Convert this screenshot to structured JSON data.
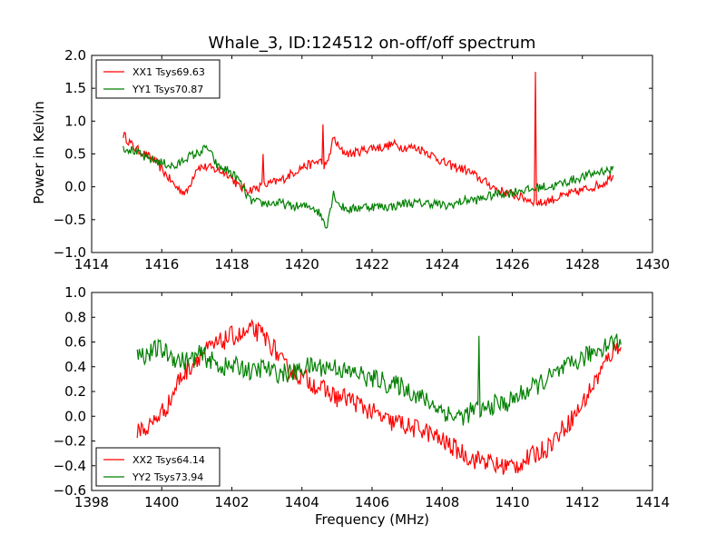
{
  "chart_data": [
    {
      "type": "line",
      "title": "Whale_3, ID:124512 on-off/off spectrum",
      "xlabel": "",
      "ylabel": "Power in Kelvin",
      "xlim": [
        1414,
        1430
      ],
      "ylim": [
        -1.0,
        2.0
      ],
      "xticks": [
        1414,
        1416,
        1418,
        1420,
        1422,
        1424,
        1426,
        1428,
        1430
      ],
      "yticks": [
        -1.0,
        -0.5,
        0.0,
        0.5,
        1.0,
        1.5,
        2.0
      ],
      "xtick_labels": [
        "1414",
        "1416",
        "1418",
        "1420",
        "1422",
        "1424",
        "1426",
        "1428",
        "1430"
      ],
      "ytick_labels": [
        "−1.0",
        "−0.5",
        "0.0",
        "0.5",
        "1.0",
        "1.5",
        "2.0"
      ],
      "grid": false,
      "legend_position": "top-left",
      "series": [
        {
          "name": "XX1 Tsys69.63",
          "color": "#ff0000",
          "x": [
            1414.9,
            1415.2,
            1415.5,
            1415.8,
            1416.1,
            1416.4,
            1416.7,
            1417.0,
            1417.3,
            1417.6,
            1417.9,
            1418.2,
            1418.5,
            1418.8,
            1419.1,
            1419.4,
            1419.7,
            1420.0,
            1420.3,
            1420.5,
            1420.7,
            1420.9,
            1421.1,
            1421.4,
            1421.7,
            1422.0,
            1422.3,
            1422.6,
            1422.9,
            1423.2,
            1423.5,
            1423.8,
            1424.1,
            1424.4,
            1424.7,
            1425.0,
            1425.3,
            1425.6,
            1425.9,
            1426.2,
            1426.5,
            1426.8,
            1427.1,
            1427.4,
            1427.7,
            1428.0,
            1428.3,
            1428.6,
            1428.9
          ],
          "y": [
            0.8,
            0.6,
            0.5,
            0.4,
            0.2,
            0.0,
            -0.1,
            0.3,
            0.3,
            0.25,
            0.2,
            0.0,
            -0.05,
            0.0,
            0.05,
            0.1,
            0.2,
            0.3,
            0.35,
            0.4,
            0.3,
            0.75,
            0.55,
            0.5,
            0.55,
            0.6,
            0.6,
            0.65,
            0.6,
            0.6,
            0.55,
            0.45,
            0.35,
            0.3,
            0.25,
            0.15,
            0.05,
            -0.05,
            -0.1,
            -0.15,
            -0.2,
            -0.25,
            -0.2,
            -0.15,
            -0.1,
            -0.05,
            0.0,
            0.05,
            0.2
          ]
        },
        {
          "name": "YY1 Tsys70.87",
          "color": "#008000",
          "x": [
            1414.9,
            1415.2,
            1415.5,
            1415.8,
            1416.1,
            1416.4,
            1416.7,
            1417.0,
            1417.3,
            1417.6,
            1417.9,
            1418.2,
            1418.5,
            1418.8,
            1419.1,
            1419.4,
            1419.7,
            1420.0,
            1420.3,
            1420.5,
            1420.7,
            1420.9,
            1421.1,
            1421.4,
            1421.7,
            1422.0,
            1422.3,
            1422.6,
            1422.9,
            1423.2,
            1423.5,
            1423.8,
            1424.1,
            1424.4,
            1424.7,
            1425.0,
            1425.3,
            1425.6,
            1425.9,
            1426.2,
            1426.5,
            1426.8,
            1427.1,
            1427.4,
            1427.7,
            1428.0,
            1428.3,
            1428.6,
            1428.9
          ],
          "y": [
            0.6,
            0.55,
            0.45,
            0.4,
            0.35,
            0.3,
            0.45,
            0.5,
            0.6,
            0.3,
            0.25,
            0.1,
            -0.2,
            -0.25,
            -0.25,
            -0.25,
            -0.3,
            -0.3,
            -0.3,
            -0.4,
            -0.6,
            -0.1,
            -0.3,
            -0.35,
            -0.3,
            -0.3,
            -0.3,
            -0.3,
            -0.25,
            -0.25,
            -0.25,
            -0.25,
            -0.3,
            -0.25,
            -0.2,
            -0.2,
            -0.15,
            -0.1,
            -0.1,
            -0.05,
            -0.05,
            0.0,
            0.0,
            0.05,
            0.1,
            0.15,
            0.2,
            0.25,
            0.25
          ]
        }
      ],
      "annotations": [
        {
          "series": 0,
          "x": 1426.65,
          "y": 1.75,
          "kind": "spike"
        },
        {
          "series": 0,
          "x": 1418.9,
          "y": 0.5,
          "kind": "spike"
        },
        {
          "series": 0,
          "x": 1420.6,
          "y": 0.95,
          "kind": "spike"
        }
      ]
    },
    {
      "type": "line",
      "title": "",
      "xlabel": "Frequency (MHz)",
      "ylabel": "",
      "xlim": [
        1398,
        1414
      ],
      "ylim": [
        -0.6,
        1.0
      ],
      "xticks": [
        1398,
        1400,
        1402,
        1404,
        1406,
        1408,
        1410,
        1412,
        1414
      ],
      "yticks": [
        -0.6,
        -0.4,
        -0.2,
        0.0,
        0.2,
        0.4,
        0.6,
        0.8,
        1.0
      ],
      "xtick_labels": [
        "1398",
        "1400",
        "1402",
        "1404",
        "1406",
        "1408",
        "1410",
        "1412",
        "1414"
      ],
      "ytick_labels": [
        "−0.6",
        "−0.4",
        "−0.2",
        "0.0",
        "0.2",
        "0.4",
        "0.6",
        "0.8",
        "1.0"
      ],
      "grid": false,
      "legend_position": "bottom-left",
      "series": [
        {
          "name": "XX2 Tsys64.14",
          "color": "#ff0000",
          "x": [
            1399.3,
            1399.6,
            1399.9,
            1400.2,
            1400.5,
            1400.8,
            1401.1,
            1401.4,
            1401.7,
            1402.0,
            1402.3,
            1402.6,
            1402.9,
            1403.2,
            1403.5,
            1403.8,
            1404.1,
            1404.4,
            1404.7,
            1405.0,
            1405.3,
            1405.6,
            1405.9,
            1406.2,
            1406.5,
            1406.8,
            1407.1,
            1407.4,
            1407.7,
            1408.0,
            1408.3,
            1408.6,
            1408.9,
            1409.2,
            1409.5,
            1409.8,
            1410.1,
            1410.4,
            1410.7,
            1411.0,
            1411.3,
            1411.6,
            1411.9,
            1412.2,
            1412.5,
            1412.8,
            1413.1
          ],
          "y": [
            -0.1,
            -0.1,
            0.0,
            0.1,
            0.3,
            0.4,
            0.5,
            0.55,
            0.6,
            0.65,
            0.65,
            0.7,
            0.65,
            0.55,
            0.4,
            0.35,
            0.3,
            0.25,
            0.2,
            0.15,
            0.15,
            0.1,
            0.05,
            0.0,
            -0.05,
            -0.05,
            -0.1,
            -0.1,
            -0.15,
            -0.2,
            -0.25,
            -0.3,
            -0.35,
            -0.35,
            -0.4,
            -0.4,
            -0.4,
            -0.35,
            -0.3,
            -0.25,
            -0.15,
            -0.05,
            0.05,
            0.2,
            0.35,
            0.5,
            0.6
          ]
        },
        {
          "name": "YY2 Tsys73.94",
          "color": "#008000",
          "x": [
            1399.3,
            1399.6,
            1399.9,
            1400.2,
            1400.5,
            1400.8,
            1401.1,
            1401.4,
            1401.7,
            1402.0,
            1402.3,
            1402.6,
            1402.9,
            1403.2,
            1403.5,
            1403.8,
            1404.1,
            1404.4,
            1404.7,
            1405.0,
            1405.3,
            1405.6,
            1405.9,
            1406.2,
            1406.5,
            1406.8,
            1407.1,
            1407.4,
            1407.7,
            1408.0,
            1408.3,
            1408.6,
            1408.9,
            1409.2,
            1409.5,
            1409.8,
            1410.1,
            1410.4,
            1410.7,
            1411.0,
            1411.3,
            1411.6,
            1411.9,
            1412.2,
            1412.5,
            1412.8,
            1413.1
          ],
          "y": [
            0.5,
            0.5,
            0.55,
            0.5,
            0.45,
            0.45,
            0.5,
            0.45,
            0.4,
            0.4,
            0.4,
            0.35,
            0.4,
            0.35,
            0.35,
            0.35,
            0.4,
            0.4,
            0.4,
            0.4,
            0.35,
            0.35,
            0.3,
            0.3,
            0.25,
            0.25,
            0.2,
            0.15,
            0.1,
            0.05,
            0.0,
            0.0,
            0.05,
            0.05,
            0.1,
            0.1,
            0.15,
            0.2,
            0.25,
            0.3,
            0.35,
            0.4,
            0.45,
            0.5,
            0.55,
            0.6,
            0.6
          ]
        }
      ],
      "annotations": [
        {
          "series": 1,
          "x": 1409.05,
          "y": 0.65,
          "kind": "spike"
        }
      ]
    }
  ]
}
